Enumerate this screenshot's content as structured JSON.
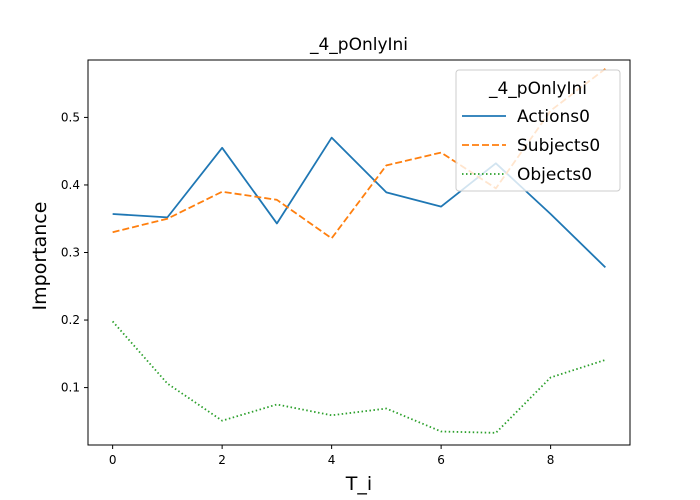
{
  "chart_data": {
    "type": "line",
    "title": "_4_pOnlyIni",
    "xlabel": "T_i",
    "ylabel": "Importance",
    "x": [
      0,
      1,
      2,
      3,
      4,
      5,
      6,
      7,
      8,
      9
    ],
    "xlim": [
      -0.45,
      9.45
    ],
    "ylim": [
      0.015,
      0.585
    ],
    "xticks": [
      0,
      2,
      4,
      6,
      8
    ],
    "yticks": [
      0.1,
      0.2,
      0.3,
      0.4,
      0.5
    ],
    "grid": false,
    "legend": {
      "title": "_4_pOnlyIni",
      "placement": "top-right"
    },
    "series": [
      {
        "name": "Actions0",
        "color": "#1f77b4",
        "dash": "solid",
        "values": [
          0.357,
          0.352,
          0.455,
          0.343,
          0.47,
          0.389,
          0.368,
          0.432,
          0.357,
          0.278
        ]
      },
      {
        "name": "Subjects0",
        "color": "#ff7f0e",
        "dash": "dashed",
        "values": [
          0.33,
          0.35,
          0.39,
          0.378,
          0.321,
          0.429,
          0.448,
          0.395,
          0.51,
          0.572
        ]
      },
      {
        "name": "Objects0",
        "color": "#2ca02c",
        "dash": "dotted",
        "values": [
          0.198,
          0.106,
          0.051,
          0.075,
          0.059,
          0.069,
          0.035,
          0.033,
          0.115,
          0.141
        ]
      }
    ]
  }
}
